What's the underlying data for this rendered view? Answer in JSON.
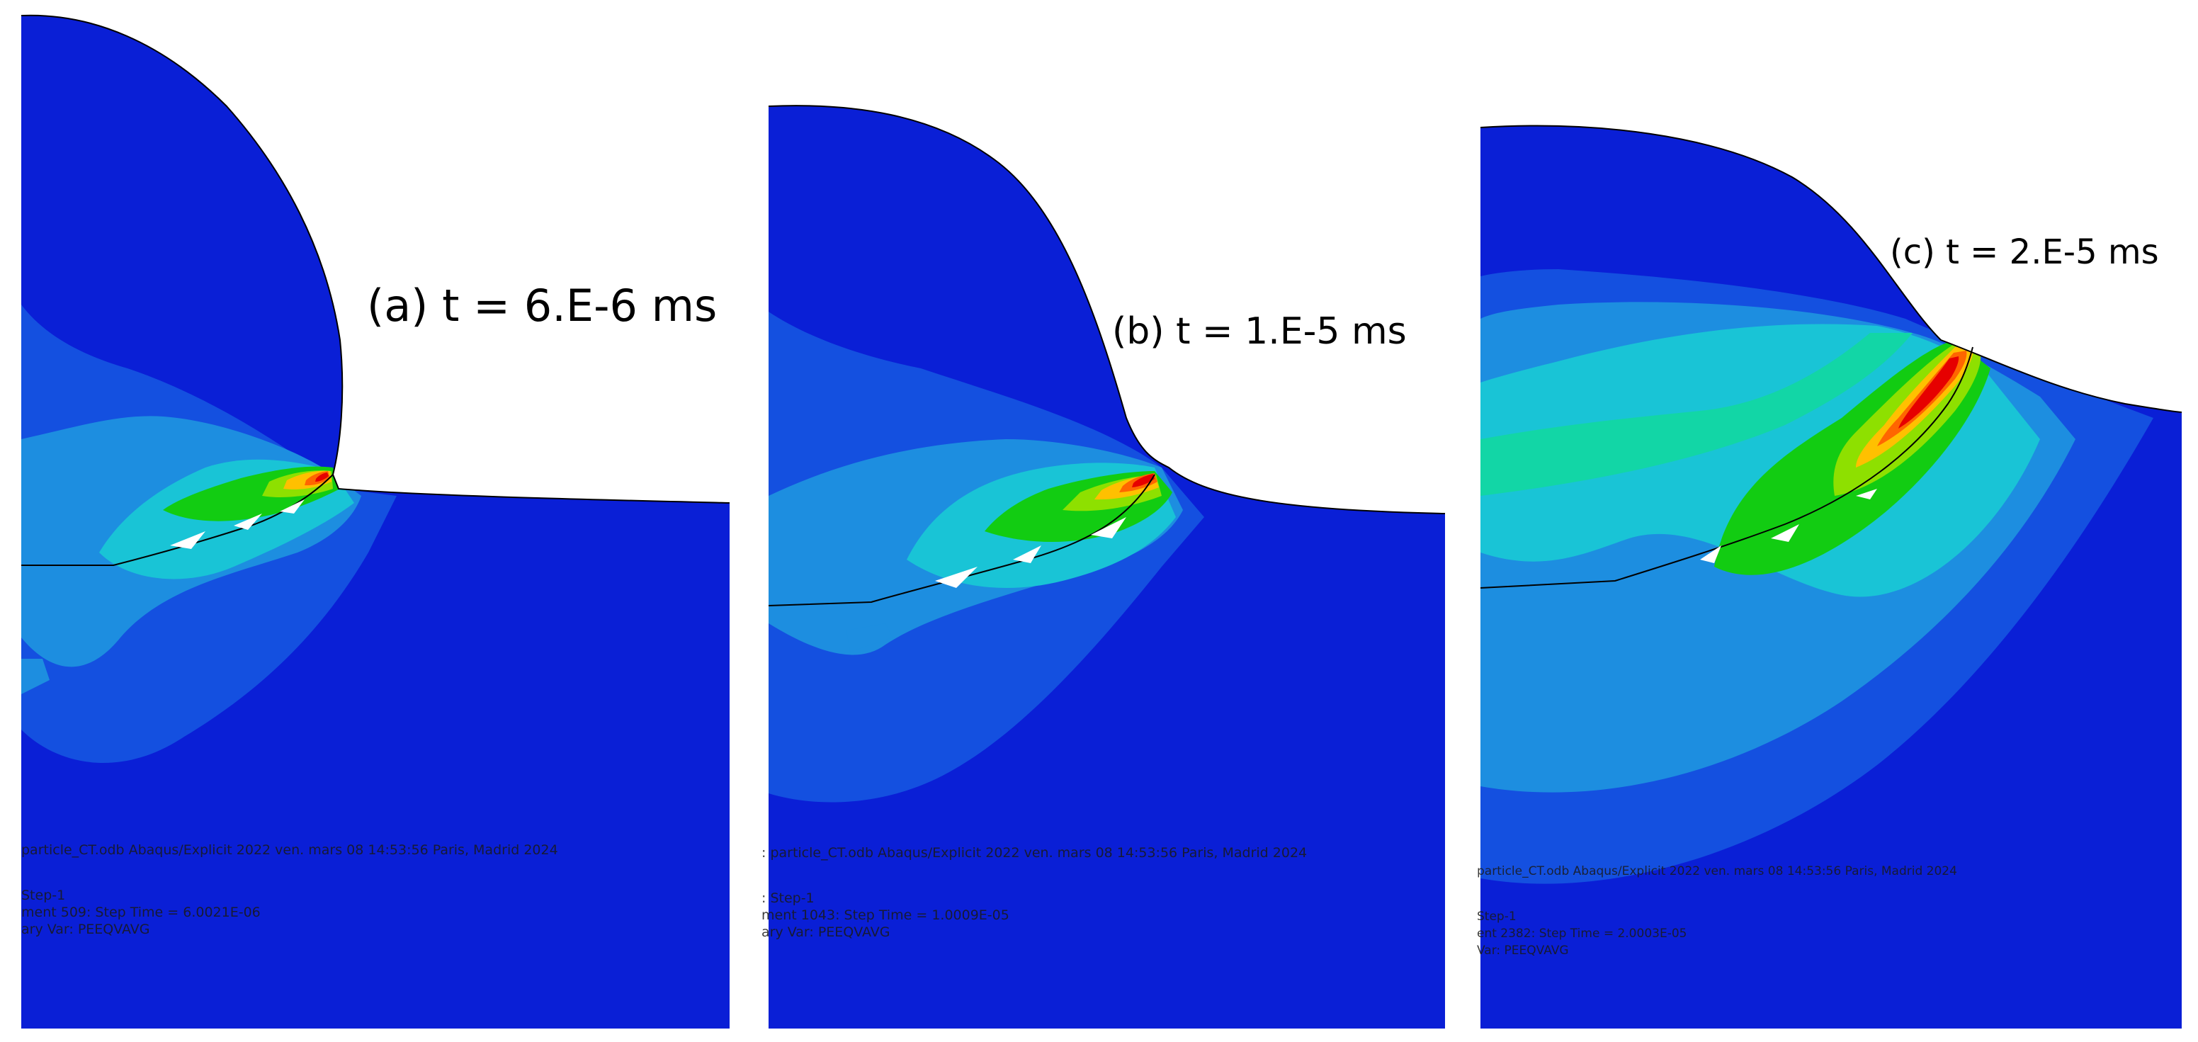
{
  "panels": [
    {
      "caption": "(a) t = 6.E-6 ms",
      "odb_line": "particle_CT.odb   Abaqus/Explicit 2022   ven. mars 08 14:53:56 Paris, Madrid 2024",
      "step_line": "Step-1",
      "increment_line": "ment     509: Step Time =   6.0021E-06",
      "var_line": "ary Var: PEEQVAVG"
    },
    {
      "caption": "(b) t = 1.E-5 ms",
      "odb_line": ": particle_CT.odb   Abaqus/Explicit 2022   ven. mars 08 14:53:56 Paris, Madrid 2024",
      "step_line": ": Step-1",
      "increment_line": "ment     1043: Step Time =   1.0009E-05",
      "var_line": "ary Var: PEEQVAVG"
    },
    {
      "caption": "(c) t = 2.E-5 ms",
      "odb_line": "particle_CT.odb   Abaqus/Explicit 2022   ven. mars 08 14:53:56 Paris, Madrid 2024",
      "step_line": "Step-1",
      "increment_line": "ent     2382: Step Time =   2.0003E-05",
      "var_line": "Var: PEEQVAVG"
    }
  ],
  "colors": {
    "background": "#ffffff",
    "contour_0": "#0a1fd6",
    "contour_1": "#1450e0",
    "contour_2": "#1d8ee0",
    "contour_3": "#19c4d6",
    "contour_4": "#12d6a6",
    "contour_5": "#12cc12",
    "contour_6": "#8ee000",
    "contour_7": "#ffc000",
    "contour_8": "#ff6600",
    "contour_9": "#e60000"
  }
}
